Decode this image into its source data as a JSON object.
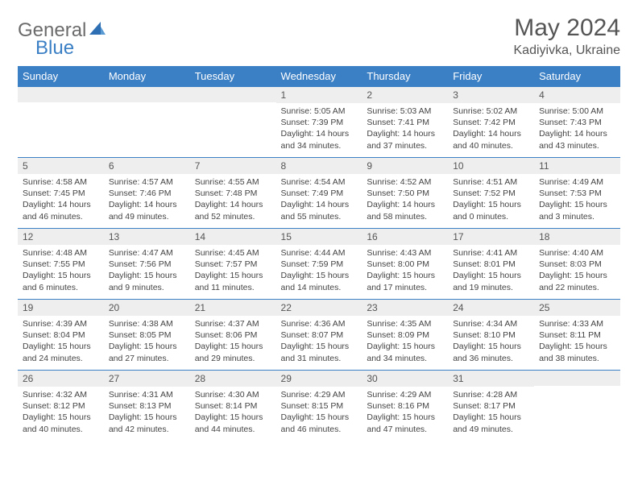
{
  "logo": {
    "text1": "General",
    "text2": "Blue"
  },
  "title": "May 2024",
  "location": "Kadiyivka, Ukraine",
  "weekdays": [
    "Sunday",
    "Monday",
    "Tuesday",
    "Wednesday",
    "Thursday",
    "Friday",
    "Saturday"
  ],
  "colors": {
    "header_bg": "#3b7fc4",
    "header_fg": "#ffffff",
    "daynum_bg": "#eeeeee",
    "border": "#3b7fc4",
    "text": "#444444"
  },
  "weeks": [
    [
      {
        "n": "",
        "sr": "",
        "ss": "",
        "dl": ""
      },
      {
        "n": "",
        "sr": "",
        "ss": "",
        "dl": ""
      },
      {
        "n": "",
        "sr": "",
        "ss": "",
        "dl": ""
      },
      {
        "n": "1",
        "sr": "Sunrise: 5:05 AM",
        "ss": "Sunset: 7:39 PM",
        "dl": "Daylight: 14 hours and 34 minutes."
      },
      {
        "n": "2",
        "sr": "Sunrise: 5:03 AM",
        "ss": "Sunset: 7:41 PM",
        "dl": "Daylight: 14 hours and 37 minutes."
      },
      {
        "n": "3",
        "sr": "Sunrise: 5:02 AM",
        "ss": "Sunset: 7:42 PM",
        "dl": "Daylight: 14 hours and 40 minutes."
      },
      {
        "n": "4",
        "sr": "Sunrise: 5:00 AM",
        "ss": "Sunset: 7:43 PM",
        "dl": "Daylight: 14 hours and 43 minutes."
      }
    ],
    [
      {
        "n": "5",
        "sr": "Sunrise: 4:58 AM",
        "ss": "Sunset: 7:45 PM",
        "dl": "Daylight: 14 hours and 46 minutes."
      },
      {
        "n": "6",
        "sr": "Sunrise: 4:57 AM",
        "ss": "Sunset: 7:46 PM",
        "dl": "Daylight: 14 hours and 49 minutes."
      },
      {
        "n": "7",
        "sr": "Sunrise: 4:55 AM",
        "ss": "Sunset: 7:48 PM",
        "dl": "Daylight: 14 hours and 52 minutes."
      },
      {
        "n": "8",
        "sr": "Sunrise: 4:54 AM",
        "ss": "Sunset: 7:49 PM",
        "dl": "Daylight: 14 hours and 55 minutes."
      },
      {
        "n": "9",
        "sr": "Sunrise: 4:52 AM",
        "ss": "Sunset: 7:50 PM",
        "dl": "Daylight: 14 hours and 58 minutes."
      },
      {
        "n": "10",
        "sr": "Sunrise: 4:51 AM",
        "ss": "Sunset: 7:52 PM",
        "dl": "Daylight: 15 hours and 0 minutes."
      },
      {
        "n": "11",
        "sr": "Sunrise: 4:49 AM",
        "ss": "Sunset: 7:53 PM",
        "dl": "Daylight: 15 hours and 3 minutes."
      }
    ],
    [
      {
        "n": "12",
        "sr": "Sunrise: 4:48 AM",
        "ss": "Sunset: 7:55 PM",
        "dl": "Daylight: 15 hours and 6 minutes."
      },
      {
        "n": "13",
        "sr": "Sunrise: 4:47 AM",
        "ss": "Sunset: 7:56 PM",
        "dl": "Daylight: 15 hours and 9 minutes."
      },
      {
        "n": "14",
        "sr": "Sunrise: 4:45 AM",
        "ss": "Sunset: 7:57 PM",
        "dl": "Daylight: 15 hours and 11 minutes."
      },
      {
        "n": "15",
        "sr": "Sunrise: 4:44 AM",
        "ss": "Sunset: 7:59 PM",
        "dl": "Daylight: 15 hours and 14 minutes."
      },
      {
        "n": "16",
        "sr": "Sunrise: 4:43 AM",
        "ss": "Sunset: 8:00 PM",
        "dl": "Daylight: 15 hours and 17 minutes."
      },
      {
        "n": "17",
        "sr": "Sunrise: 4:41 AM",
        "ss": "Sunset: 8:01 PM",
        "dl": "Daylight: 15 hours and 19 minutes."
      },
      {
        "n": "18",
        "sr": "Sunrise: 4:40 AM",
        "ss": "Sunset: 8:03 PM",
        "dl": "Daylight: 15 hours and 22 minutes."
      }
    ],
    [
      {
        "n": "19",
        "sr": "Sunrise: 4:39 AM",
        "ss": "Sunset: 8:04 PM",
        "dl": "Daylight: 15 hours and 24 minutes."
      },
      {
        "n": "20",
        "sr": "Sunrise: 4:38 AM",
        "ss": "Sunset: 8:05 PM",
        "dl": "Daylight: 15 hours and 27 minutes."
      },
      {
        "n": "21",
        "sr": "Sunrise: 4:37 AM",
        "ss": "Sunset: 8:06 PM",
        "dl": "Daylight: 15 hours and 29 minutes."
      },
      {
        "n": "22",
        "sr": "Sunrise: 4:36 AM",
        "ss": "Sunset: 8:07 PM",
        "dl": "Daylight: 15 hours and 31 minutes."
      },
      {
        "n": "23",
        "sr": "Sunrise: 4:35 AM",
        "ss": "Sunset: 8:09 PM",
        "dl": "Daylight: 15 hours and 34 minutes."
      },
      {
        "n": "24",
        "sr": "Sunrise: 4:34 AM",
        "ss": "Sunset: 8:10 PM",
        "dl": "Daylight: 15 hours and 36 minutes."
      },
      {
        "n": "25",
        "sr": "Sunrise: 4:33 AM",
        "ss": "Sunset: 8:11 PM",
        "dl": "Daylight: 15 hours and 38 minutes."
      }
    ],
    [
      {
        "n": "26",
        "sr": "Sunrise: 4:32 AM",
        "ss": "Sunset: 8:12 PM",
        "dl": "Daylight: 15 hours and 40 minutes."
      },
      {
        "n": "27",
        "sr": "Sunrise: 4:31 AM",
        "ss": "Sunset: 8:13 PM",
        "dl": "Daylight: 15 hours and 42 minutes."
      },
      {
        "n": "28",
        "sr": "Sunrise: 4:30 AM",
        "ss": "Sunset: 8:14 PM",
        "dl": "Daylight: 15 hours and 44 minutes."
      },
      {
        "n": "29",
        "sr": "Sunrise: 4:29 AM",
        "ss": "Sunset: 8:15 PM",
        "dl": "Daylight: 15 hours and 46 minutes."
      },
      {
        "n": "30",
        "sr": "Sunrise: 4:29 AM",
        "ss": "Sunset: 8:16 PM",
        "dl": "Daylight: 15 hours and 47 minutes."
      },
      {
        "n": "31",
        "sr": "Sunrise: 4:28 AM",
        "ss": "Sunset: 8:17 PM",
        "dl": "Daylight: 15 hours and 49 minutes."
      },
      {
        "n": "",
        "sr": "",
        "ss": "",
        "dl": ""
      }
    ]
  ]
}
